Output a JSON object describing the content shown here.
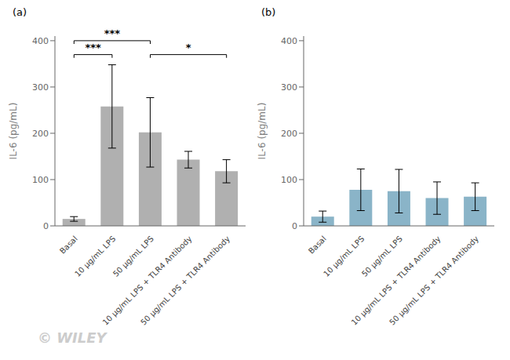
{
  "chart_data": [
    {
      "type": "bar",
      "title": "(a)",
      "categories": [
        "Basal",
        "10 μg/mL LPS",
        "50 μg/mL LPS",
        "10 μg/mL LPS + TLR4 Antibody",
        "50 μg/mL LPS + TLR4 Antibody"
      ],
      "values": [
        15,
        258,
        202,
        143,
        118
      ],
      "errors": [
        5,
        90,
        75,
        18,
        25
      ],
      "color": "#b0b0b0",
      "ylabel": "IL-6 (pg/mL)",
      "ylim": [
        0,
        410
      ],
      "yticks": [
        0,
        100,
        200,
        300,
        400
      ],
      "annotations": [
        {
          "text": "***",
          "x1": "Basal",
          "x2": "50 μg/mL LPS",
          "y": 400
        },
        {
          "text": "***",
          "x1": "Basal",
          "x2": "10 μg/mL LPS",
          "y": 370
        },
        {
          "text": "*",
          "x1": "50 μg/mL LPS",
          "x2": "50 μg/mL LPS + TLR4 Antibody",
          "y": 370
        },
        {
          "text": "© WILEY",
          "color": "#cccccc"
        }
      ]
    },
    {
      "type": "bar",
      "title": "(b)",
      "categories": [
        "Basal",
        "10 μg/mL LPS",
        "50 μg/mL LPS",
        "10 μg/mL LPS + TLR4 Antibody",
        "50 μg/mL LPS + TLR4 Antibody"
      ],
      "values": [
        20,
        78,
        75,
        60,
        63
      ],
      "errors": [
        12,
        45,
        47,
        35,
        30
      ],
      "color": "#8ab4c8",
      "ylabel": "IL-6 (pg/mL)",
      "ylim": [
        0,
        410
      ],
      "yticks": [
        0,
        100,
        200,
        300,
        400
      ]
    }
  ]
}
